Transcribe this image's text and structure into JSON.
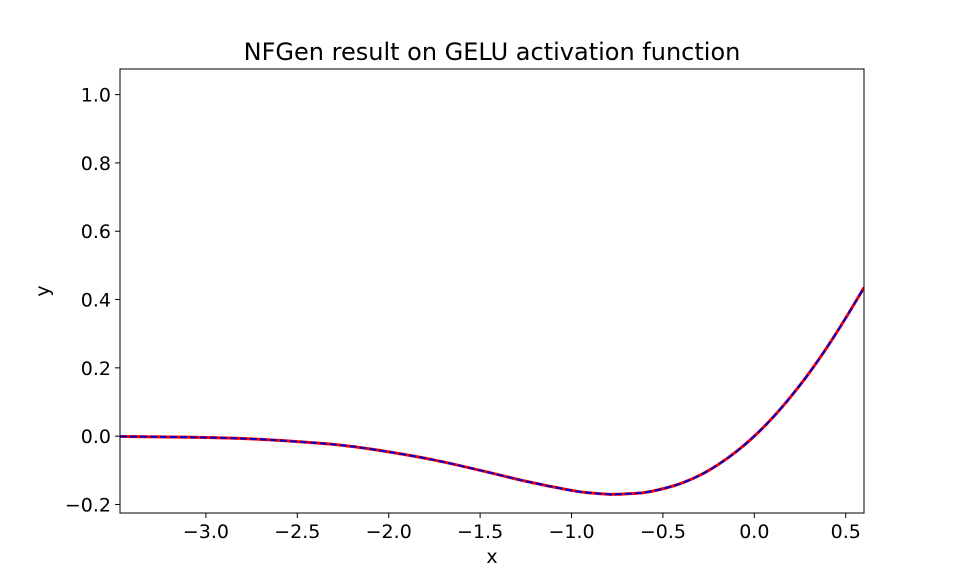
{
  "chart_data": {
    "type": "line",
    "title": "NFGen result on GELU activation function",
    "xlabel": "x",
    "ylabel": "y",
    "xlim": [
      -3.47,
      0.6
    ],
    "ylim": [
      -0.225,
      1.075
    ],
    "xticks": [
      -3.0,
      -2.5,
      -2.0,
      -1.5,
      -1.0,
      -0.5,
      0.0,
      0.5
    ],
    "xtick_labels": [
      "−3.0",
      "−2.5",
      "−2.0",
      "−1.5",
      "−1.0",
      "−0.5",
      "0.0",
      "0.5"
    ],
    "yticks": [
      -0.2,
      0.0,
      0.2,
      0.4,
      0.6,
      0.8,
      1.0
    ],
    "ytick_labels": [
      "−0.2",
      "0.0",
      "0.2",
      "0.4",
      "0.6",
      "0.8",
      "1.0"
    ],
    "grid": false,
    "legend": "none",
    "series": [
      {
        "color": "#ff0000",
        "style": "solid",
        "x": [
          -3.47,
          -3.25,
          -3.0,
          -2.75,
          -2.5,
          -2.25,
          -2.0,
          -1.75,
          -1.5,
          -1.25,
          -1.0,
          -0.9,
          -0.8,
          -0.75,
          -0.7,
          -0.6,
          -0.5,
          -0.4,
          -0.3,
          -0.2,
          -0.1,
          0.0,
          0.1,
          0.2,
          0.3,
          0.4,
          0.5,
          0.6
        ],
        "y": [
          -0.001,
          -0.002,
          -0.004,
          -0.008,
          -0.016,
          -0.027,
          -0.046,
          -0.07,
          -0.1,
          -0.132,
          -0.159,
          -0.166,
          -0.17,
          -0.17,
          -0.169,
          -0.165,
          -0.154,
          -0.138,
          -0.115,
          -0.084,
          -0.046,
          0.0,
          0.054,
          0.116,
          0.185,
          0.262,
          0.346,
          0.435
        ]
      },
      {
        "color": "#0000cc",
        "style": "dashed",
        "x": [
          -3.47,
          -3.25,
          -3.0,
          -2.75,
          -2.5,
          -2.25,
          -2.0,
          -1.75,
          -1.5,
          -1.25,
          -1.0,
          -0.9,
          -0.8,
          -0.75,
          -0.7,
          -0.6,
          -0.5,
          -0.4,
          -0.3,
          -0.2,
          -0.1,
          0.0,
          0.1,
          0.2,
          0.3,
          0.4,
          0.5,
          0.6
        ],
        "y": [
          -0.001,
          -0.002,
          -0.004,
          -0.008,
          -0.016,
          -0.027,
          -0.046,
          -0.07,
          -0.1,
          -0.132,
          -0.159,
          -0.166,
          -0.17,
          -0.17,
          -0.169,
          -0.165,
          -0.154,
          -0.138,
          -0.115,
          -0.084,
          -0.046,
          0.0,
          0.054,
          0.116,
          0.185,
          0.262,
          0.346,
          0.435
        ]
      }
    ]
  }
}
